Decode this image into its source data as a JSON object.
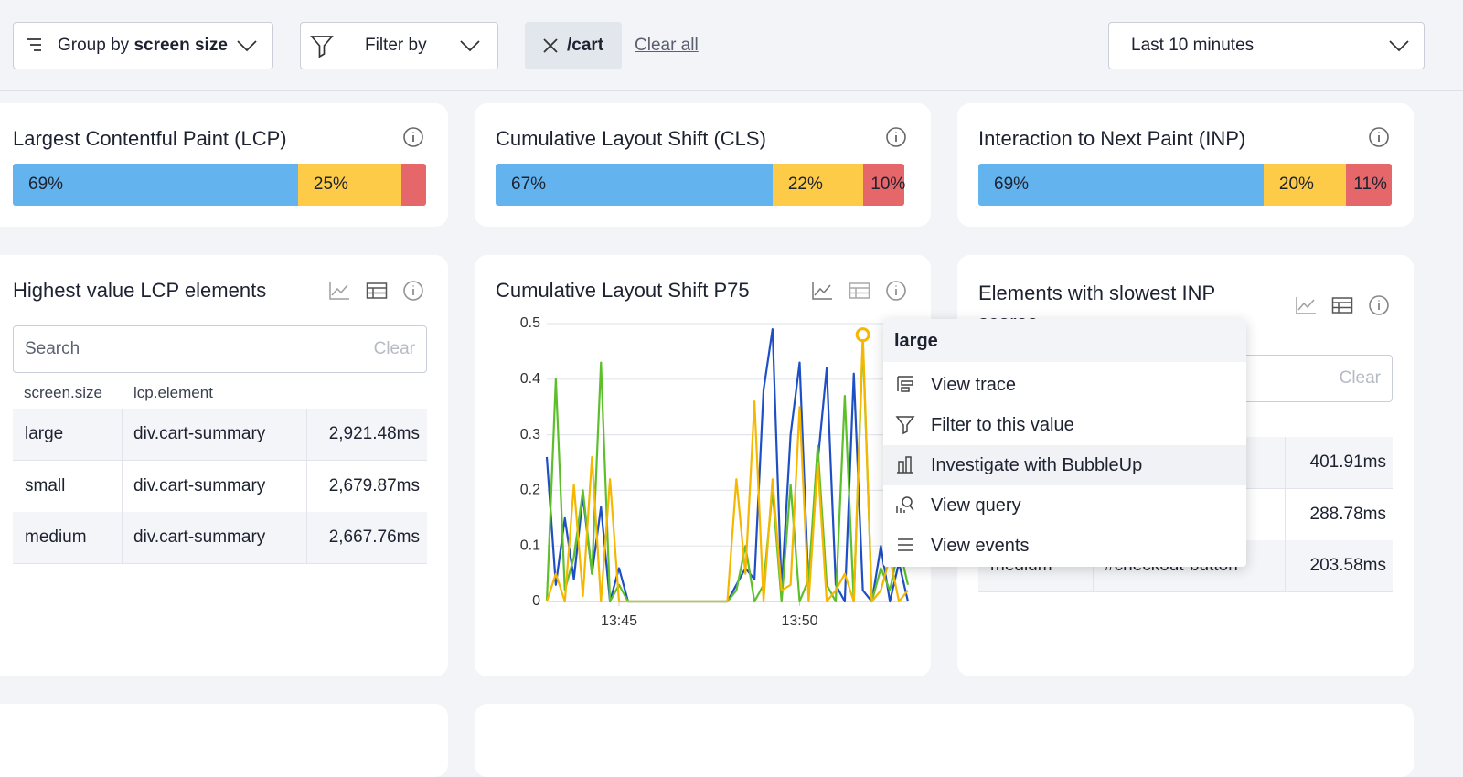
{
  "toolbar": {
    "group_by": {
      "label": "Group by",
      "value": "screen size"
    },
    "filter_by": "Filter by",
    "active_filter": "/cart",
    "clear_all": "Clear all",
    "time_range": "Last 10 minutes"
  },
  "summary_cards": [
    {
      "title": "Largest Contentful Paint (LCP)",
      "segments": [
        {
          "value": 69,
          "label": "69%",
          "color": "#62b3ee"
        },
        {
          "value": 25,
          "label": "25%",
          "color": "#fdcb47"
        },
        {
          "value": 6,
          "color": "#e5676a"
        }
      ]
    },
    {
      "title": "Cumulative Layout Shift (CLS)",
      "segments": [
        {
          "value": 67,
          "label": "67%",
          "color": "#62b3ee"
        },
        {
          "value": 22,
          "label": "22%",
          "color": "#fdcb47"
        },
        {
          "value": 10,
          "label": "10%",
          "color": "#e5676a"
        }
      ]
    },
    {
      "title": "Interaction to Next Paint (INP)",
      "segments": [
        {
          "value": 69,
          "label": "69%",
          "color": "#62b3ee"
        },
        {
          "value": 20,
          "label": "20%",
          "color": "#fdcb47"
        },
        {
          "value": 11,
          "label": "11%",
          "color": "#e5676a"
        }
      ]
    }
  ],
  "lcp_table": {
    "title": "Highest value LCP elements",
    "search_placeholder": "Search",
    "clear": "Clear",
    "columns": [
      "screen.size",
      "lcp.element"
    ],
    "rows": [
      [
        "large",
        "div.cart-summary",
        "2,921.48ms"
      ],
      [
        "small",
        "div.cart-summary",
        "2,679.87ms"
      ],
      [
        "medium",
        "div.cart-summary",
        "2,667.76ms"
      ]
    ]
  },
  "cls_chart": {
    "title": "Cumulative Layout Shift P75",
    "chart_data": {
      "type": "line",
      "categories": [
        null,
        null,
        null,
        null,
        null,
        null,
        null,
        null,
        "13:45",
        null,
        null,
        null,
        null,
        null,
        null,
        null,
        null,
        null,
        null,
        null,
        null,
        null,
        null,
        null,
        null,
        null,
        null,
        null,
        "13:50",
        null,
        null,
        null,
        null,
        null,
        null,
        null,
        null,
        null,
        null,
        null,
        null
      ],
      "series": [
        {
          "color": "#1f4fc4",
          "values": [
            0.26,
            0.03,
            0.15,
            0.04,
            0.19,
            0.05,
            0.17,
            0,
            0.06,
            0,
            0,
            0,
            0,
            0,
            0,
            0,
            0,
            0,
            0,
            0,
            0,
            0.03,
            0.06,
            0.04,
            0.38,
            0.49,
            0.02,
            0.3,
            0.43,
            0.02,
            0.25,
            0.42,
            0.03,
            0,
            0.41,
            0.02,
            0,
            0.1,
            0,
            0.07,
            0
          ]
        },
        {
          "color": "#5dbf2b",
          "values": [
            0,
            0.4,
            0.02,
            0.08,
            0.2,
            0.05,
            0.43,
            0,
            0.03,
            0,
            0,
            0,
            0,
            0,
            0,
            0,
            0,
            0,
            0,
            0,
            0,
            0.02,
            0.1,
            0,
            0.03,
            0.2,
            0,
            0.21,
            0,
            0.04,
            0.28,
            0.03,
            0,
            0.37,
            0,
            0.47,
            0,
            0.06,
            0.02,
            0.1,
            0.03
          ]
        },
        {
          "color": "#f5b700",
          "values": [
            0,
            0.05,
            0,
            0.21,
            0.01,
            0.26,
            0,
            0.22,
            0,
            0,
            0,
            0,
            0,
            0,
            0,
            0,
            0,
            0,
            0,
            0,
            0,
            0.22,
            0.05,
            0.36,
            0,
            0.22,
            0.02,
            0.03,
            0.35,
            0,
            0.25,
            0,
            0.02,
            0.05,
            0,
            0.48,
            0,
            0.02,
            0.08,
            0,
            0.02
          ]
        }
      ],
      "ylim": [
        0,
        0.5
      ],
      "yticks": [
        0,
        0.1,
        0.2,
        0.3,
        0.4,
        0.5
      ],
      "grid": true
    }
  },
  "inp_table": {
    "title": "Elements with slowest INP scores",
    "clear": "Clear",
    "rows": [
      {
        "duration": "401.91ms"
      },
      {
        "duration": "288.78ms"
      },
      {
        "screen_size": "medium",
        "element": "#checkout-button",
        "duration": "203.58ms"
      }
    ]
  },
  "context_menu": {
    "title": "large",
    "items": [
      "View trace",
      "Filter to this value",
      "Investigate with BubbleUp",
      "View query",
      "View events"
    ]
  }
}
